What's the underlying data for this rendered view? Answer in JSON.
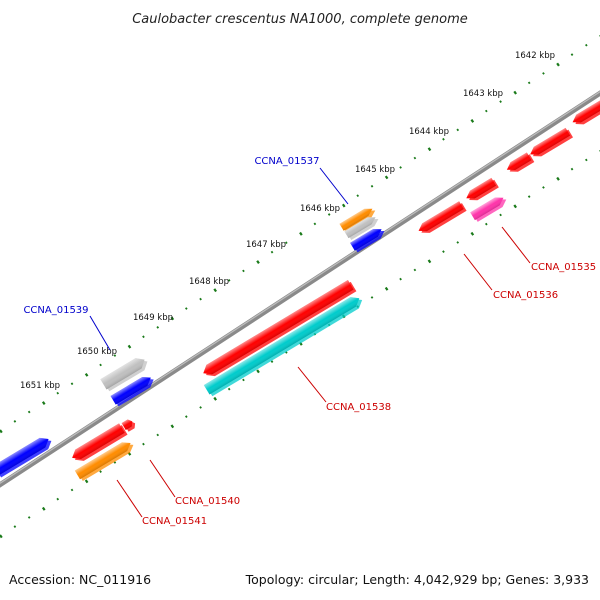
{
  "title": "Caulobacter crescentus NA1000, complete genome",
  "ticks": [
    "1642 kbp",
    "1643 kbp",
    "1644 kbp",
    "1645 kbp",
    "1646 kbp",
    "1647 kbp",
    "1648 kbp",
    "1649 kbp",
    "1650 kbp",
    "1651 kbp"
  ],
  "genes": [
    {
      "id": "CCNA_01535",
      "label": "CCNA_01535",
      "color": "#ff33aa",
      "label_color": "#cc0000"
    },
    {
      "id": "CCNA_01536",
      "label": "CCNA_01536",
      "color": "#ff0000",
      "label_color": "#cc0000"
    },
    {
      "id": "CCNA_01537",
      "label": "CCNA_01537",
      "color": "#ff8c00",
      "label_color": "#0000cc"
    },
    {
      "id": "CCNA_01538",
      "label": "CCNA_01538",
      "color": "#00cccc",
      "label_color": "#cc0000"
    },
    {
      "id": "CCNA_01539",
      "label": "CCNA_01539",
      "color": "#c0c0c0",
      "label_color": "#0000cc"
    },
    {
      "id": "CCNA_01540",
      "label": "CCNA_01540",
      "color": "#ff0000",
      "label_color": "#cc0000"
    },
    {
      "id": "CCNA_01541",
      "label": "CCNA_01541",
      "color": "#ff8c00",
      "label_color": "#cc0000"
    }
  ],
  "colors": {
    "backbone": "#777777",
    "ticks": "#1a7a1a",
    "forward_red": "#ff0000",
    "forward_blue": "#0000ff",
    "gray": "#c0c0c0"
  },
  "footer": {
    "accession": "Accession: NC_011916",
    "summary": "Topology: circular; Length: 4,042,929 bp; Genes: 3,933"
  }
}
